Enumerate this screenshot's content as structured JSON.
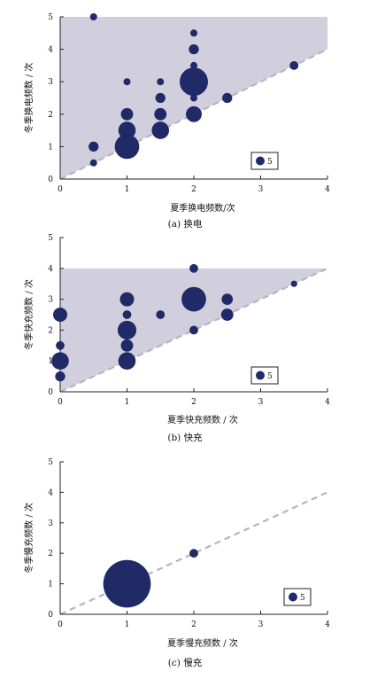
{
  "colors": {
    "marker": "#1f2a66",
    "shade": "#cfcbdb",
    "diagonal": "#b7b4c2",
    "axis": "#222222"
  },
  "chart_data": [
    {
      "type": "scatter",
      "caption": "(a)  换电",
      "xlabel": "夏季换电频数/次",
      "ylabel": "冬季换电频数 / 次",
      "xlim": [
        0,
        4
      ],
      "ylim": [
        0,
        5
      ],
      "xticks": [
        "0",
        "1",
        "2",
        "3",
        "4"
      ],
      "yticks": [
        "0",
        "1",
        "2",
        "3",
        "4",
        "5"
      ],
      "shaded_region_ymax": 5,
      "legend_size_label": "5",
      "points": [
        {
          "x": 0.5,
          "y": 5,
          "size": 1
        },
        {
          "x": 0.5,
          "y": 1,
          "size": 2
        },
        {
          "x": 0.5,
          "y": 0.5,
          "size": 1
        },
        {
          "x": 1,
          "y": 3,
          "size": 1
        },
        {
          "x": 1,
          "y": 2,
          "size": 3
        },
        {
          "x": 1,
          "y": 1.5,
          "size": 6
        },
        {
          "x": 1,
          "y": 1,
          "size": 12
        },
        {
          "x": 1.5,
          "y": 3,
          "size": 1
        },
        {
          "x": 1.5,
          "y": 2.5,
          "size": 2
        },
        {
          "x": 1.5,
          "y": 2,
          "size": 3
        },
        {
          "x": 1.5,
          "y": 1.5,
          "size": 6
        },
        {
          "x": 2,
          "y": 4.5,
          "size": 1
        },
        {
          "x": 2,
          "y": 4,
          "size": 2
        },
        {
          "x": 2,
          "y": 3.5,
          "size": 1
        },
        {
          "x": 2,
          "y": 3,
          "size": 16
        },
        {
          "x": 2,
          "y": 2.5,
          "size": 1
        },
        {
          "x": 2,
          "y": 2,
          "size": 5
        },
        {
          "x": 2.5,
          "y": 2.5,
          "size": 2
        },
        {
          "x": 3.5,
          "y": 3.5,
          "size": 1.5
        }
      ]
    },
    {
      "type": "scatter",
      "caption": "(b)  快充",
      "xlabel": "夏季快充频数 / 次",
      "ylabel": "冬季快充频数 / 次",
      "xlim": [
        0,
        4
      ],
      "ylim": [
        0,
        5
      ],
      "xticks": [
        "0",
        "1",
        "2",
        "3",
        "4"
      ],
      "yticks": [
        "0",
        "1",
        "2",
        "3",
        "4",
        "5"
      ],
      "shaded_region_ymax": 4,
      "legend_size_label": "5",
      "points": [
        {
          "x": 0,
          "y": 2.5,
          "size": 4
        },
        {
          "x": 0,
          "y": 1.5,
          "size": 1.5
        },
        {
          "x": 0,
          "y": 1,
          "size": 6
        },
        {
          "x": 0,
          "y": 0.5,
          "size": 2
        },
        {
          "x": 1,
          "y": 3,
          "size": 4
        },
        {
          "x": 1,
          "y": 2.5,
          "size": 1.5
        },
        {
          "x": 1,
          "y": 2,
          "size": 7
        },
        {
          "x": 1,
          "y": 1.5,
          "size": 3
        },
        {
          "x": 1,
          "y": 1,
          "size": 6
        },
        {
          "x": 1.5,
          "y": 2.5,
          "size": 1.5
        },
        {
          "x": 2,
          "y": 4,
          "size": 1.5
        },
        {
          "x": 2,
          "y": 3,
          "size": 12
        },
        {
          "x": 2,
          "y": 2,
          "size": 1.5
        },
        {
          "x": 2.5,
          "y": 3,
          "size": 2.5
        },
        {
          "x": 2.5,
          "y": 2.5,
          "size": 3
        },
        {
          "x": 3.5,
          "y": 3.5,
          "size": 0.8
        }
      ]
    },
    {
      "type": "scatter",
      "caption": "(c)  慢充",
      "xlabel": "夏季慢充频数 / 次",
      "ylabel": "冬季慢充频数 / 次",
      "xlim": [
        0,
        4
      ],
      "ylim": [
        0,
        5
      ],
      "xticks": [
        "0",
        "1",
        "2",
        "3",
        "4"
      ],
      "yticks": [
        "0",
        "1",
        "2",
        "3",
        "4",
        "5"
      ],
      "shaded_region_ymax": null,
      "legend_size_label": "5",
      "points": [
        {
          "x": 1,
          "y": 1,
          "size": 45
        },
        {
          "x": 2,
          "y": 2,
          "size": 1.5
        }
      ]
    }
  ]
}
